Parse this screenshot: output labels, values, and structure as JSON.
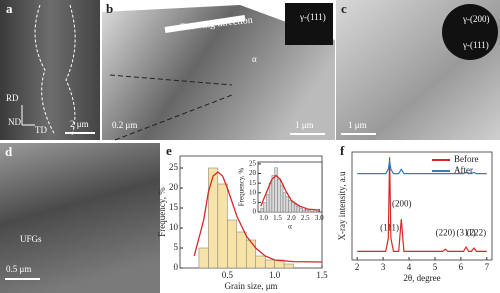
{
  "panels": {
    "a": {
      "label": "a",
      "rd": "RD",
      "nd": "ND",
      "td": "TD",
      "scale": "2 μm"
    },
    "b": {
      "label": "b",
      "saed": "γ-(111)",
      "direction": "Drawing direction",
      "alpha": "α",
      "scale_inset": "0.2 μm",
      "scale": "1 μm"
    },
    "c": {
      "label": "c",
      "saed_200": "γ-(200)",
      "saed_111": "γ-(111)",
      "scale": "1 μm"
    },
    "d": {
      "label": "d",
      "ufg": "UFGs",
      "scale": "0.5 μm"
    }
  },
  "chart_data": [
    {
      "type": "histogram",
      "label": "e",
      "xlabel": "Grain size, μm",
      "ylabel": "Frequency, %",
      "color": "#f7e3a8",
      "bins": [
        0.2,
        0.3,
        0.4,
        0.5,
        0.6,
        0.7,
        0.8,
        0.9,
        1.0,
        1.1,
        1.2
      ],
      "values": [
        5,
        25,
        21,
        12,
        9,
        7,
        3,
        2,
        2,
        1
      ],
      "fit": {
        "color": "#d62728",
        "x": [
          0.15,
          0.25,
          0.3,
          0.35,
          0.4,
          0.45,
          0.5,
          0.6,
          0.7,
          0.8,
          0.9,
          1.0,
          1.2,
          1.5
        ],
        "y": [
          3,
          12,
          19,
          23,
          24,
          23,
          20,
          13,
          8,
          5,
          3,
          2,
          1.6,
          1.5
        ]
      },
      "xlim": [
        0,
        1.5
      ],
      "xticks": [
        0.5,
        {
          "value": 1.0,
          "label": "1.0"
        },
        1.5
      ],
      "ylim": [
        0,
        28
      ],
      "yticks": [
        0,
        5,
        10,
        15,
        20,
        25
      ],
      "inset": {
        "type": "histogram",
        "xlabel": "α",
        "ylabel": "Frequency, %",
        "color": "#d9d9d9",
        "bins": [
          0.9,
          1.0,
          1.1,
          1.2,
          1.3,
          1.4,
          1.5,
          1.6,
          1.7,
          1.8,
          1.9,
          2.0,
          2.1,
          2.2,
          2.3,
          2.4,
          2.5,
          2.6,
          2.7,
          2.8,
          2.9
        ],
        "values": [
          2,
          5,
          9,
          15,
          19,
          23,
          17,
          14,
          10,
          8,
          6,
          5,
          4,
          3,
          2,
          1,
          1,
          1,
          0,
          1
        ],
        "fit": {
          "color": "#d62728",
          "x": [
            0.9,
            1.1,
            1.3,
            1.45,
            1.6,
            1.8,
            2.0,
            2.3,
            2.6,
            3.0
          ],
          "y": [
            3,
            10,
            17,
            19,
            17,
            11,
            6,
            3,
            1.5,
            1
          ]
        },
        "xlim": [
          0.8,
          3.1
        ],
        "xticks": [
          {
            "value": 1.0,
            "label": "1.0"
          },
          1.5,
          {
            "value": 2.0,
            "label": "2.0"
          },
          2.5,
          {
            "value": 3.0,
            "label": "3.0"
          }
        ],
        "ylim": [
          0,
          26
        ],
        "yticks": [
          0,
          5,
          10,
          15,
          20,
          25
        ]
      }
    },
    {
      "type": "line",
      "label": "f",
      "xlabel": "2θ, degree",
      "ylabel": "X-ray intensity, a.u",
      "xlim": [
        1.8,
        7.2
      ],
      "xticks": [
        2,
        3,
        4,
        5,
        6,
        7
      ],
      "ylim": [
        0,
        100
      ],
      "legend": "upper right",
      "series": [
        {
          "name": "Before",
          "color": "#d62728",
          "x": [
            2,
            3.1,
            3.2,
            3.25,
            3.3,
            3.4,
            3.6,
            3.7,
            3.8,
            5.3,
            5.4,
            5.5,
            6.1,
            6.2,
            6.3,
            6.4,
            6.5,
            6.6,
            7
          ],
          "values": [
            8,
            8,
            20,
            95,
            20,
            8,
            8,
            38,
            8,
            8,
            10,
            8,
            8,
            12,
            8,
            8,
            11,
            8,
            8
          ]
        },
        {
          "name": "After",
          "color": "#3a78c2",
          "x": [
            2,
            3.1,
            3.2,
            3.25,
            3.3,
            3.4,
            3.6,
            3.7,
            3.8,
            5.3,
            5.4,
            5.5,
            6.1,
            6.2,
            6.3,
            6.4,
            6.5,
            6.6,
            7
          ],
          "values": [
            80,
            80,
            84,
            92,
            84,
            80,
            80,
            84,
            80,
            80,
            80,
            80,
            80,
            81,
            80,
            80,
            81,
            80,
            80
          ]
        }
      ],
      "annotations": [
        "(111)",
        "(200)",
        "(220)",
        "(311)",
        "(222)"
      ]
    }
  ]
}
